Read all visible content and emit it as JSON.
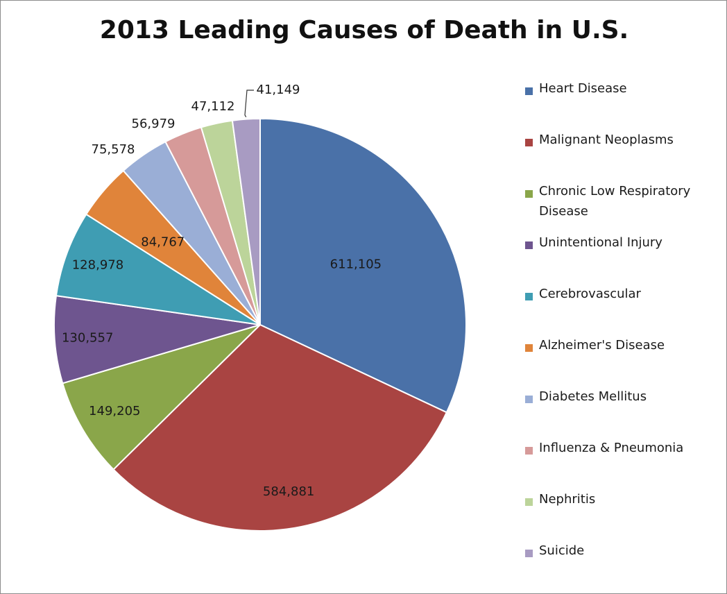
{
  "chart_data": {
    "type": "pie",
    "title": "2013 Leading Causes of Death in U.S.",
    "legend_position": "right",
    "slices": [
      {
        "name": "Heart Disease",
        "value": 611105,
        "label": "611,105",
        "color": "#4a71a8"
      },
      {
        "name": "Malignant Neoplasms",
        "value": 584881,
        "label": "584,881",
        "color": "#a94442"
      },
      {
        "name": "Chronic Low Respiratory Disease",
        "value": 149205,
        "label": "149,205",
        "color": "#8aa64a"
      },
      {
        "name": "Unintentional Injury",
        "value": 130557,
        "label": "130,557",
        "color": "#6e558f"
      },
      {
        "name": "Cerebrovascular",
        "value": 128978,
        "label": "128,978",
        "color": "#3f9db3"
      },
      {
        "name": "Alzheimer's Disease",
        "value": 84767,
        "label": "84,767",
        "color": "#e0843a"
      },
      {
        "name": "Diabetes Mellitus",
        "value": 75578,
        "label": "75,578",
        "color": "#9aaed6"
      },
      {
        "name": "Influenza & Pneumonia",
        "value": 56979,
        "label": "56,979",
        "color": "#d69a99"
      },
      {
        "name": "Nephritis",
        "value": 47112,
        "label": "47,112",
        "color": "#bcd49a"
      },
      {
        "name": "Suicide",
        "value": 41149,
        "label": "41,149",
        "color": "#a89bc2"
      }
    ]
  }
}
